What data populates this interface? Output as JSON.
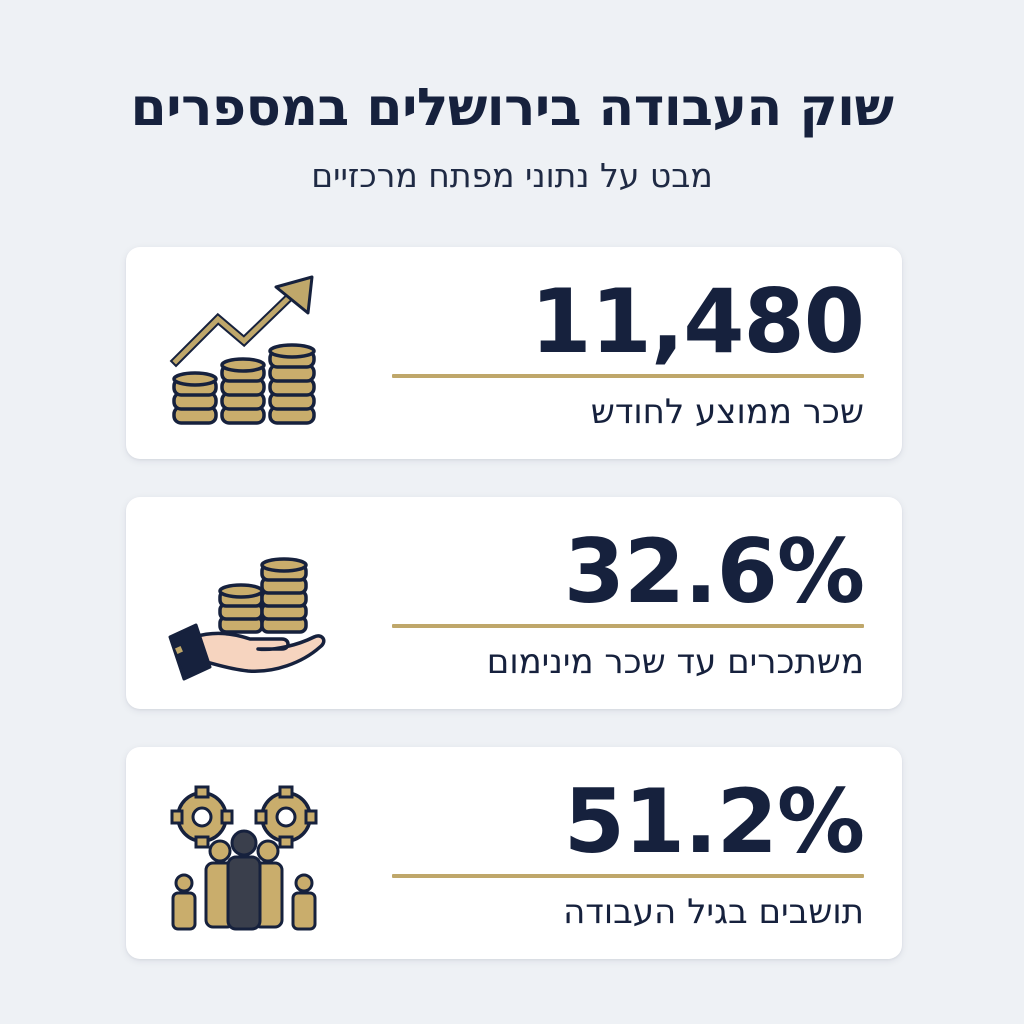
{
  "header": {
    "title": "שוק העבודה בירושלים במספרים",
    "subtitle": "מבט על נתוני מפתח מרכזיים"
  },
  "stats": [
    {
      "value": "11,480",
      "label": "שכר ממוצע לחודש",
      "icon": "rising-coins-chart-icon"
    },
    {
      "value": "32.6%",
      "label": "משתכרים עד שכר מינימום",
      "icon": "hand-holding-coins-icon"
    },
    {
      "value": "51.2%",
      "label": "תושבים בגיל העבודה",
      "icon": "people-gears-icon"
    }
  ],
  "colors": {
    "navy": "#16213d",
    "gold": "#bfa76a",
    "background": "#eef1f5",
    "card": "#ffffff",
    "skin": "#f6d4bf"
  }
}
